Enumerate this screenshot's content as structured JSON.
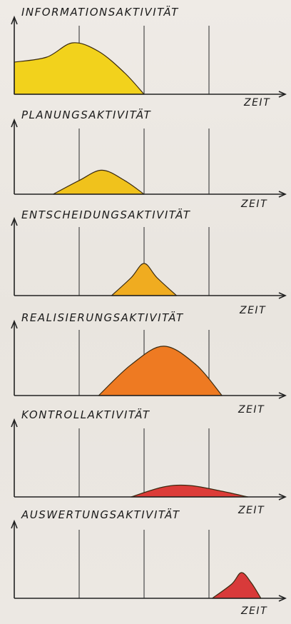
{
  "chart_data": [
    {
      "type": "area",
      "title": "INFORMATIONSAKTIVITÄT",
      "xlabel": "ZEIT",
      "color": "#f2d21c",
      "xlim": [
        0,
        4
      ],
      "ylim": [
        0,
        1
      ],
      "x": [
        0,
        0.5,
        0.9,
        1.3,
        1.7,
        2.0
      ],
      "y": [
        0.45,
        0.52,
        0.72,
        0.6,
        0.3,
        0.0
      ],
      "vlines": [
        1,
        2,
        3
      ]
    },
    {
      "type": "area",
      "title": "PLANUNGSAKTIVITÄT",
      "xlabel": "ZEIT",
      "color": "#f0c21c",
      "xlim": [
        0,
        4
      ],
      "ylim": [
        0,
        1
      ],
      "x": [
        0.6,
        1.0,
        1.35,
        1.7,
        2.0
      ],
      "y": [
        0.0,
        0.2,
        0.35,
        0.2,
        0.0
      ],
      "vlines": [
        1,
        2,
        3
      ]
    },
    {
      "type": "area",
      "title": "ENTSCHEIDUNGSAKTIVITÄT",
      "xlabel": "ZEIT",
      "color": "#f0ac20",
      "xlim": [
        0,
        4
      ],
      "ylim": [
        0,
        1
      ],
      "x": [
        1.5,
        1.8,
        2.0,
        2.2,
        2.5
      ],
      "y": [
        0.0,
        0.25,
        0.45,
        0.25,
        0.0
      ],
      "vlines": [
        1,
        2,
        3
      ]
    },
    {
      "type": "area",
      "title": "REALISIERUNGSAKTIVITÄT",
      "xlabel": "ZEIT",
      "color": "#ee7a22",
      "xlim": [
        0,
        4
      ],
      "ylim": [
        0,
        1
      ],
      "x": [
        1.3,
        1.8,
        2.3,
        2.8,
        3.2
      ],
      "y": [
        0.0,
        0.45,
        0.72,
        0.45,
        0.0
      ],
      "vlines": [
        1,
        2,
        3
      ]
    },
    {
      "type": "area",
      "title": "KONTROLLAKTIVITÄT",
      "xlabel": "ZEIT",
      "color": "#dc3c38",
      "xlim": [
        0,
        4
      ],
      "ylim": [
        0,
        1
      ],
      "x": [
        1.8,
        2.3,
        2.7,
        3.2,
        3.6
      ],
      "y": [
        0.0,
        0.14,
        0.16,
        0.08,
        0.0
      ],
      "vlines": [
        1,
        2,
        3
      ]
    },
    {
      "type": "area",
      "title": "AUSWERTUNGSAKTIVITÄT",
      "xlabel": "ZEIT",
      "color": "#d83a3a",
      "xlim": [
        0,
        4
      ],
      "ylim": [
        0,
        1
      ],
      "x": [
        3.05,
        3.35,
        3.5,
        3.65,
        3.8
      ],
      "y": [
        0.0,
        0.2,
        0.36,
        0.22,
        0.0
      ],
      "vlines": [
        1,
        2,
        3
      ]
    }
  ]
}
